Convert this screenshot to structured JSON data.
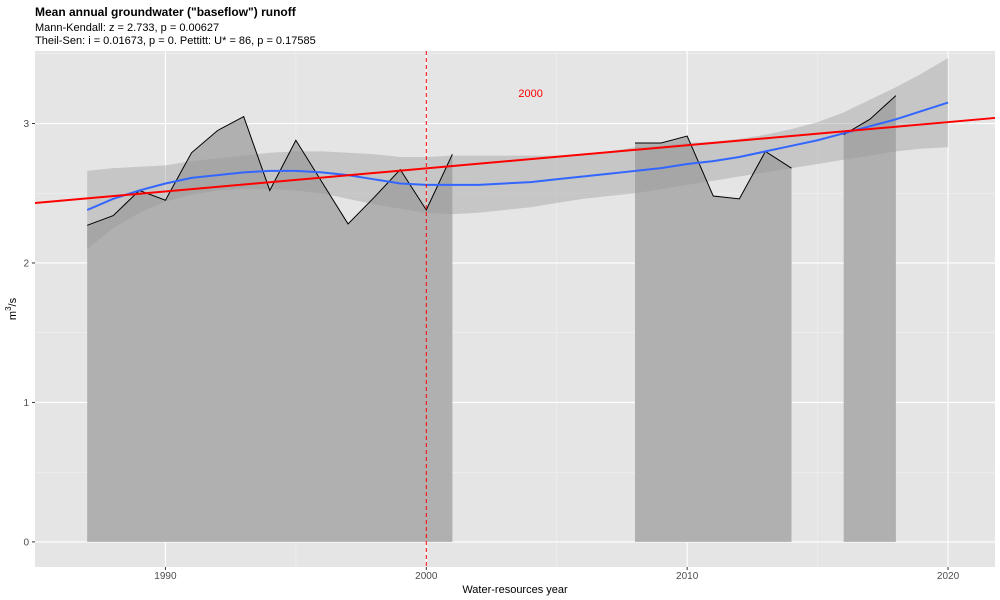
{
  "chart_data": {
    "type": "area",
    "title": "Mean annual groundwater (\"baseflow\") runoff",
    "subtitle_line1": "Mann-Kendall: z = 2.733, p = 0.00627",
    "subtitle_line2": "Theil-Sen: i = 0.01673, p = 0. Pettitt: U* = 86, p = 0.17585",
    "xlabel": "Water-resources year",
    "ylabel_base": "m",
    "ylabel_sup": "3",
    "ylabel_rest": "/s",
    "xlim": [
      1985,
      2021.8
    ],
    "ylim": [
      -0.18,
      3.52
    ],
    "x_ticks": [
      1990,
      2000,
      2010,
      2020
    ],
    "x_tick_labels": [
      "1990",
      "2000",
      "2010",
      "2020"
    ],
    "y_ticks": [
      0,
      1,
      2,
      3
    ],
    "y_tick_labels": [
      "0",
      "1",
      "2",
      "3"
    ],
    "grid": true,
    "series": [
      {
        "kind": "observed",
        "color": "#000000",
        "fill": "#b0b0b0",
        "segments": [
          {
            "x": [
              1987,
              1988,
              1989,
              1990,
              1991,
              1992,
              1993,
              1994,
              1995,
              1996,
              1997,
              1998,
              1999,
              2000,
              2001
            ],
            "y": [
              2.27,
              2.34,
              2.52,
              2.45,
              2.79,
              2.95,
              3.05,
              2.52,
              2.88,
              2.58,
              2.28,
              2.47,
              2.67,
              2.38,
              2.78
            ]
          },
          {
            "x": [
              2008,
              2009,
              2010,
              2011,
              2012,
              2013,
              2014
            ],
            "y": [
              2.86,
              2.86,
              2.91,
              2.48,
              2.46,
              2.8,
              2.68
            ]
          },
          {
            "x": [
              2016,
              2017,
              2018
            ],
            "y": [
              2.92,
              3.03,
              3.2
            ]
          }
        ]
      },
      {
        "kind": "loess",
        "color": "#3366ff",
        "x": [
          1987,
          1988,
          1989,
          1990,
          1991,
          1992,
          1993,
          1994,
          1995,
          1996,
          1997,
          1998,
          1999,
          2000,
          2001,
          2002,
          2003,
          2004,
          2005,
          2006,
          2007,
          2008,
          2009,
          2010,
          2011,
          2012,
          2013,
          2014,
          2015,
          2016,
          2017,
          2018,
          2019,
          2020
        ],
        "y": [
          2.38,
          2.46,
          2.52,
          2.57,
          2.61,
          2.63,
          2.65,
          2.66,
          2.66,
          2.65,
          2.63,
          2.6,
          2.57,
          2.56,
          2.56,
          2.56,
          2.57,
          2.58,
          2.6,
          2.62,
          2.64,
          2.66,
          2.68,
          2.71,
          2.73,
          2.76,
          2.8,
          2.84,
          2.88,
          2.93,
          2.98,
          3.03,
          3.09,
          3.15
        ],
        "lower": [
          2.1,
          2.25,
          2.36,
          2.44,
          2.49,
          2.52,
          2.53,
          2.53,
          2.52,
          2.5,
          2.46,
          2.42,
          2.39,
          2.36,
          2.35,
          2.36,
          2.38,
          2.4,
          2.43,
          2.46,
          2.48,
          2.5,
          2.53,
          2.56,
          2.59,
          2.62,
          2.65,
          2.68,
          2.71,
          2.74,
          2.77,
          2.8,
          2.82,
          2.83
        ],
        "upper": [
          2.66,
          2.68,
          2.69,
          2.7,
          2.73,
          2.75,
          2.77,
          2.79,
          2.8,
          2.8,
          2.79,
          2.78,
          2.76,
          2.76,
          2.77,
          2.77,
          2.77,
          2.77,
          2.77,
          2.78,
          2.8,
          2.83,
          2.84,
          2.86,
          2.87,
          2.89,
          2.92,
          2.96,
          3.01,
          3.08,
          3.17,
          3.26,
          3.36,
          3.47
        ]
      },
      {
        "kind": "trend",
        "color": "#ff0000",
        "x": [
          1985,
          2021.8
        ],
        "y": [
          2.43,
          3.04
        ]
      }
    ],
    "change_point": {
      "x": 2000,
      "label": "2000",
      "label_y": 3.22,
      "label_x": 2004
    }
  }
}
